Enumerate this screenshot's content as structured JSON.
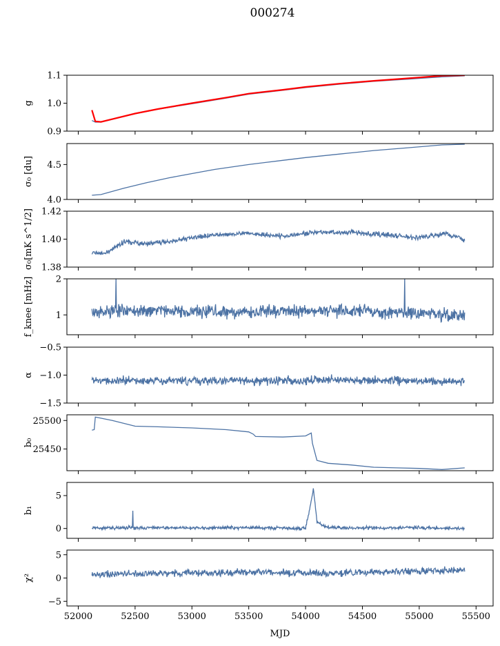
{
  "figure": {
    "title": "000274",
    "xlabel": "MJD"
  },
  "colors": {
    "series": "#4c72a4",
    "overlay": "#ff0000",
    "axis": "#000000"
  },
  "chart_data": [
    {
      "type": "line",
      "panel": "g",
      "ylabel": "g",
      "ylim": [
        0.9,
        1.1
      ],
      "yticks": [
        "0.9",
        "1.0",
        "1.1"
      ],
      "xlim": [
        51900,
        55650
      ],
      "x": [
        52120,
        52150,
        52200,
        52300,
        52500,
        52700,
        53000,
        53300,
        53500,
        53800,
        54000,
        54300,
        54600,
        54900,
        55200,
        55400
      ],
      "series": [
        {
          "values": [
            0.938,
            0.932,
            0.932,
            0.942,
            0.962,
            0.978,
            0.998,
            1.018,
            1.032,
            1.046,
            1.056,
            1.068,
            1.078,
            1.086,
            1.094,
            1.098
          ]
        },
        {
          "values": [
            0.975,
            0.935,
            0.933,
            0.943,
            0.963,
            0.979,
            1.0,
            1.02,
            1.034,
            1.048,
            1.058,
            1.07,
            1.08,
            1.089,
            1.098,
            1.1
          ]
        }
      ],
      "grid": false
    },
    {
      "type": "line",
      "panel": "sigma0",
      "ylabel": "σ₀ [du]",
      "ylim": [
        4.0,
        4.8
      ],
      "yticks": [
        "4.0",
        "4.5"
      ],
      "xlim": [
        51900,
        55650
      ],
      "x": [
        52120,
        52200,
        52400,
        52600,
        52800,
        53000,
        53200,
        53500,
        53800,
        54000,
        54300,
        54600,
        54900,
        55200,
        55400
      ],
      "series": [
        {
          "values": [
            4.06,
            4.07,
            4.16,
            4.24,
            4.31,
            4.37,
            4.43,
            4.5,
            4.56,
            4.6,
            4.65,
            4.7,
            4.74,
            4.78,
            4.79
          ]
        }
      ],
      "grid": false
    },
    {
      "type": "line",
      "panel": "sigma0_mk",
      "ylabel": "σ₀[mK s^1/2]",
      "ylim": [
        1.38,
        1.42
      ],
      "yticks": [
        "1.38",
        "1.40",
        "1.42"
      ],
      "xlim": [
        51900,
        55650
      ],
      "x": [
        52120,
        52250,
        52400,
        52600,
        52800,
        53000,
        53200,
        53500,
        53800,
        54100,
        54400,
        54700,
        55000,
        55250,
        55400
      ],
      "series": [
        {
          "values": [
            1.39,
            1.39,
            1.398,
            1.397,
            1.398,
            1.401,
            1.403,
            1.404,
            1.402,
            1.405,
            1.405,
            1.403,
            1.401,
            1.404,
            1.399
          ]
        }
      ],
      "noise": 0.0018,
      "grid": false
    },
    {
      "type": "line",
      "panel": "fknee",
      "ylabel": "f_knee [mHz]",
      "ylim": [
        0.45,
        2.0
      ],
      "yticks": [
        "1",
        "2"
      ],
      "xlim": [
        51900,
        55650
      ],
      "x": [
        52120,
        52800,
        53500,
        54200,
        54900,
        55400
      ],
      "series": [
        {
          "values": [
            1.1,
            1.12,
            1.08,
            1.1,
            1.07,
            0.95
          ]
        }
      ],
      "noise": 0.18,
      "spikes": [
        [
          52330,
          2.0
        ],
        [
          54870,
          2.0
        ]
      ],
      "grid": false
    },
    {
      "type": "line",
      "panel": "alpha",
      "ylabel": "α",
      "ylim": [
        -1.5,
        -0.5
      ],
      "yticks": [
        "−1.5",
        "−1.0",
        "−0.5"
      ],
      "xlim": [
        51900,
        55650
      ],
      "x": [
        52120,
        52800,
        53500,
        54200,
        54900,
        55400
      ],
      "series": [
        {
          "values": [
            -1.1,
            -1.1,
            -1.1,
            -1.09,
            -1.1,
            -1.12
          ]
        }
      ],
      "noise": 0.07,
      "grid": false
    },
    {
      "type": "line",
      "panel": "b0",
      "ylabel": "b₀",
      "ylim": [
        25412,
        25510
      ],
      "yticks": [
        "25450",
        "25500"
      ],
      "xlim": [
        51900,
        55650
      ],
      "x": [
        52120,
        52140,
        52150,
        52300,
        52500,
        52700,
        53000,
        53300,
        53500,
        53540,
        53560,
        53800,
        54000,
        54050,
        54060,
        54100,
        54200,
        54400,
        54600,
        54800,
        55000,
        55200,
        55400
      ],
      "series": [
        {
          "values": [
            25483,
            25484,
            25506,
            25500,
            25490,
            25489,
            25487,
            25484,
            25480,
            25476,
            25472,
            25471,
            25473,
            25478,
            25460,
            25430,
            25425,
            25422,
            25418,
            25417,
            25416,
            25414,
            25417
          ]
        }
      ],
      "grid": false
    },
    {
      "type": "line",
      "panel": "b1",
      "ylabel": "b₁",
      "ylim": [
        -1.5,
        7
      ],
      "yticks": [
        "0",
        "5"
      ],
      "xlim": [
        51900,
        55650
      ],
      "x": [
        52120,
        52800,
        53500,
        54000,
        54070,
        54100,
        54200,
        54900,
        55400
      ],
      "series": [
        {
          "values": [
            0.1,
            0.1,
            0.1,
            0.0,
            6.0,
            1.0,
            0.1,
            0.1,
            0.0
          ]
        }
      ],
      "noise": 0.25,
      "spikes": [
        [
          52480,
          2.7
        ],
        [
          54068,
          6.1
        ]
      ],
      "grid": false
    },
    {
      "type": "line",
      "panel": "chi2",
      "ylabel": "χ²",
      "ylim": [
        -6,
        6
      ],
      "yticks": [
        "−5",
        "0",
        "5"
      ],
      "xlim": [
        51900,
        55650
      ],
      "xticks": [
        "52000",
        "52500",
        "53000",
        "53500",
        "54000",
        "54500",
        "55000",
        "55500"
      ],
      "x": [
        52120,
        52800,
        53500,
        54200,
        54900,
        55400
      ],
      "series": [
        {
          "values": [
            0.8,
            1.0,
            1.2,
            1.1,
            1.4,
            1.8
          ]
        }
      ],
      "noise": 0.7,
      "grid": false
    }
  ]
}
